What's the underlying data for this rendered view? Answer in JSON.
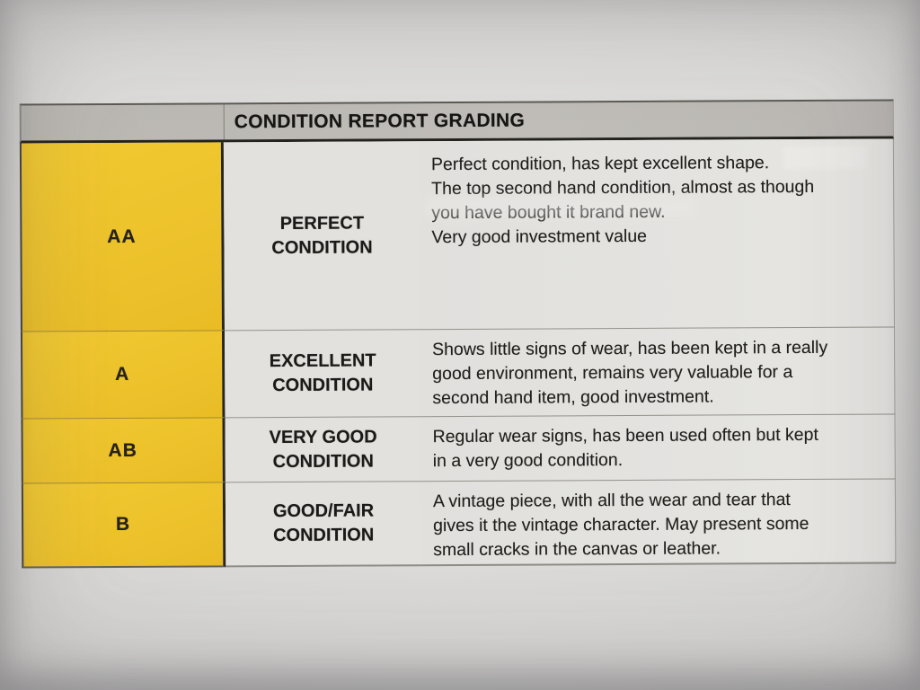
{
  "doc": {
    "title": "CONDITION REPORT GRADING",
    "rows": [
      {
        "grade": "AA",
        "label_lines": [
          "PERFECT",
          "CONDITION"
        ],
        "paragraphs": [
          [
            "Perfect condition, has kept excellent shape."
          ],
          [
            "The top second hand condition, almost as though",
            "you have bought it brand new."
          ],
          [
            "Very good investment value"
          ]
        ]
      },
      {
        "grade": "A",
        "label_lines": [
          "EXCELLENT",
          "CONDITION"
        ],
        "paragraphs": [
          [
            "Shows little signs of wear, has been kept in a really",
            "good environment, remains very valuable for a",
            "second hand item, good investment."
          ]
        ]
      },
      {
        "grade": "AB",
        "label_lines": [
          "VERY GOOD",
          "CONDITION"
        ],
        "paragraphs": [
          [
            "Regular wear signs, has been used often but kept",
            "in a very good condition."
          ]
        ]
      },
      {
        "grade": "B",
        "label_lines": [
          "GOOD/FAIR",
          "CONDITION"
        ],
        "paragraphs": [
          [
            "A vintage piece, with all the wear and tear that",
            "gives it the vintage character. May present some",
            "small cracks in the canvas or leather."
          ]
        ]
      }
    ],
    "colors": {
      "highlight_yellow": "#eec42d",
      "header_gray": "#bcb9b4",
      "cell_gray": "#e3e2df",
      "text": "#1d1c1a"
    }
  }
}
